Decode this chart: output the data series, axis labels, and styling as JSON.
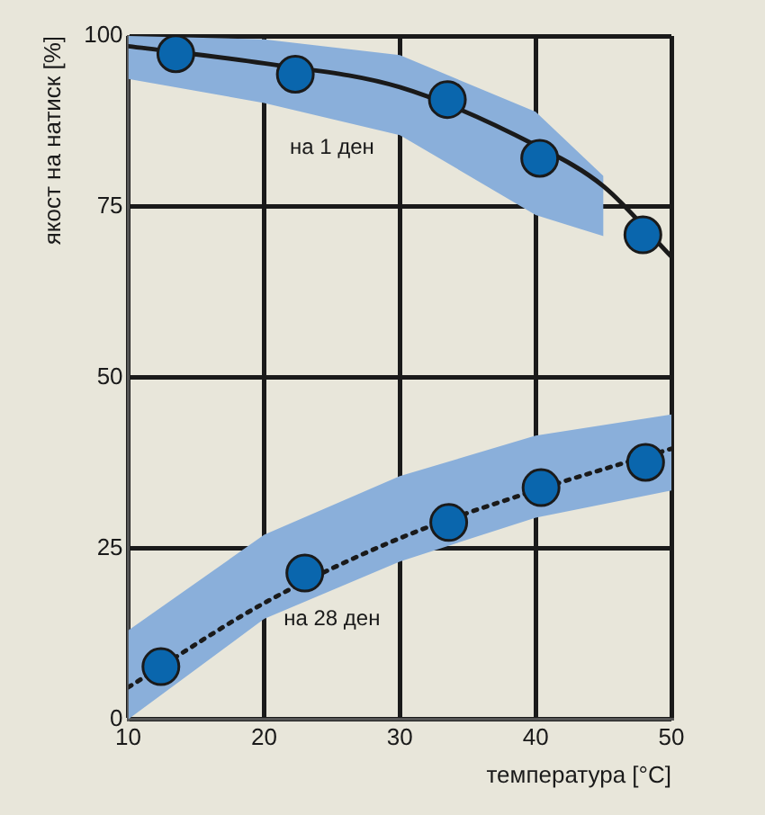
{
  "chart_data": {
    "type": "scatter",
    "xlabel": "температура [°C]",
    "ylabel": "якост на натиск [%]",
    "xlim": [
      10,
      50
    ],
    "xticks": [
      10,
      20,
      30,
      40,
      50
    ],
    "ylim": [
      0,
      100
    ],
    "yticks": [
      0,
      25,
      50,
      75,
      100
    ],
    "grid": true,
    "legend": false,
    "annotations": [
      "на 28 ден",
      "на 1 ден"
    ],
    "series": [
      {
        "type": "line",
        "color": "#1a1a1a",
        "line_style": "dotted",
        "marker": "none",
        "x": [
          10,
          20,
          30,
          40,
          50
        ],
        "values": [
          4.7,
          17,
          26.5,
          33.5,
          39.6
        ],
        "lower": [
          0,
          14.7,
          23.1,
          29.5,
          33.5
        ],
        "upper": [
          13,
          27,
          35.6,
          41.5,
          44.6
        ]
      },
      {
        "type": "line",
        "color": "#1a1a1a",
        "line_style": "solid",
        "marker": "none",
        "x": [
          10,
          20,
          30,
          40,
          45,
          50
        ],
        "values": [
          98.5,
          96,
          92.5,
          84,
          78,
          67.7
        ],
        "lower": [
          93.7,
          90.2,
          85.5,
          73.8,
          70.7,
          null
        ],
        "upper": [
          100,
          99.5,
          97.2,
          88.9,
          79.5,
          null
        ]
      },
      {
        "type": "scatter",
        "color": "#0a66ad",
        "marker": "circle",
        "x": [
          12.4,
          23.0,
          33.6,
          40.4,
          48.1
        ],
        "values": [
          7.7,
          21.4,
          28.8,
          33.9,
          37.6
        ]
      },
      {
        "type": "scatter",
        "color": "#0a66ad",
        "marker": "circle",
        "x": [
          13.5,
          22.3,
          33.5,
          40.3,
          47.9
        ],
        "values": [
          97.4,
          94.4,
          90.7,
          82.1,
          70.9
        ]
      }
    ]
  }
}
